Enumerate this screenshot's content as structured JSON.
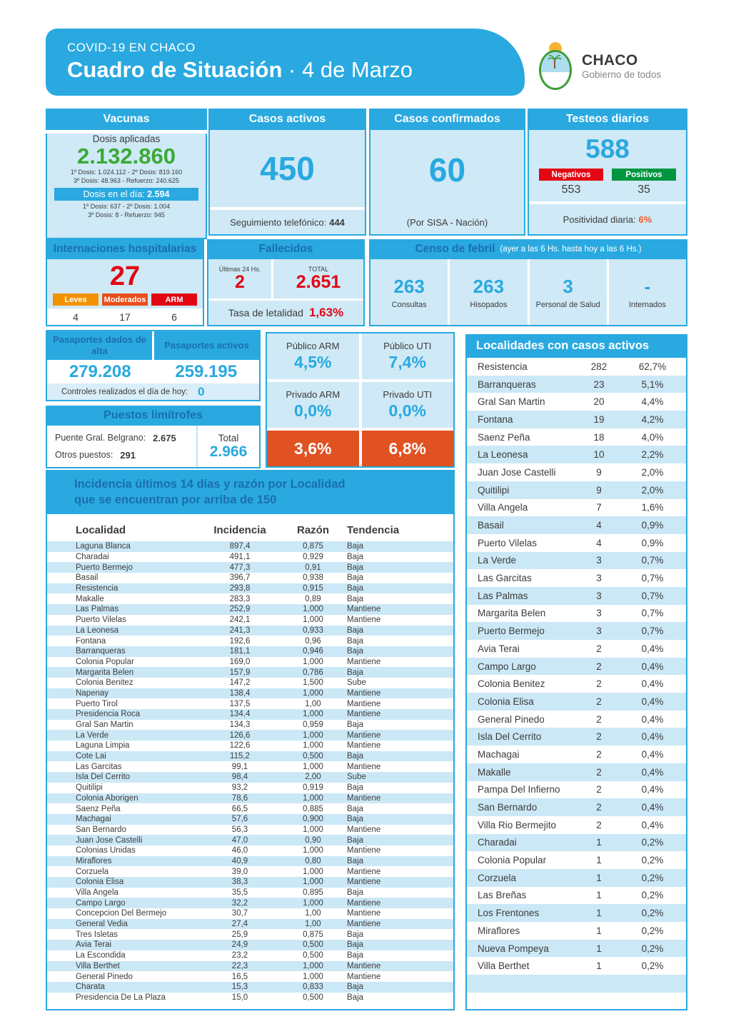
{
  "header": {
    "supertitle": "COVID-19 EN CHACO",
    "title": "Cuadro de Situación",
    "date": " · 4 de Marzo",
    "logo_name": "CHACO",
    "logo_tagline": "Gobierno de todos"
  },
  "vacunas": {
    "title": "Vacunas",
    "dosis_aplicadas_label": "Dosis aplicadas",
    "dosis_aplicadas": "2.132.860",
    "detalle_1": "1º Dosis: 1.024.112  -  2º Dosis:  819.160",
    "detalle_2": "3º Dosis: 48.963  -  Refuerzo: 240.625",
    "dosis_dia_label": "Dosis en el día: ",
    "dosis_dia": "2.594",
    "detalle_dia_1": "1º Dosis:  637  -  2º Dosis:  1.004",
    "detalle_dia_2": "3º Dosis: 8  -  Refuerzo:  945"
  },
  "casos_activos": {
    "title": "Casos activos",
    "value": "450",
    "footer_label": "Seguimiento telefónico:",
    "footer_value": "444"
  },
  "casos_confirmados": {
    "title": "Casos confirmados",
    "value": "60",
    "note": "(Por SISA - Nación)"
  },
  "testeos": {
    "title": "Testeos diarios",
    "value": "588",
    "negativos_label": "Negativos",
    "negativos": "553",
    "positivos_label": "Positivos",
    "positivos": "35",
    "positividad_label": "Positividad diaria:",
    "positividad": "6%"
  },
  "internaciones": {
    "title": "Internaciones hospitalarias",
    "value": "27",
    "categories": [
      {
        "label": "Leves",
        "value": "4",
        "color": "#F39200"
      },
      {
        "label": "Moderados",
        "value": "17",
        "color": "#E94E1B"
      },
      {
        "label": "ARM",
        "value": "6",
        "color": "#E30613"
      }
    ]
  },
  "fallecidos": {
    "title": "Fallecidos",
    "ultimas_label": "Últimas 24 Hs.",
    "ultimas": "2",
    "total_label": "TOTAL",
    "total": "2.651",
    "letalidad_label": "Tasa de letalidad",
    "letalidad": "1,63%"
  },
  "censo": {
    "title": "Censo de febril",
    "subtitle": "(ayer a las 6 Hs. hasta hoy a las 6 Hs.)",
    "items": [
      {
        "value": "263",
        "label": "Consultas"
      },
      {
        "value": "263",
        "label": "Hisopados"
      },
      {
        "value": "3",
        "label": "Personal de Salud"
      },
      {
        "value": "-",
        "label": "Internados"
      }
    ]
  },
  "pasaportes": {
    "alta_title": "Pasaportes dados de alta",
    "alta_value": "279.208",
    "activos_title": "Pasaportes activos",
    "activos_value": "259.195",
    "controles_label": "Controles realizados el día de hoy:",
    "controles_value": "0"
  },
  "puestos": {
    "title": "Puestos limítrofes",
    "rows": [
      {
        "label": "Puente Gral. Belgrano:",
        "value": "2.675"
      },
      {
        "label": "Otros puestos:",
        "value": "291"
      }
    ],
    "total_label": "Total",
    "total_value": "2.966"
  },
  "ocupacion": {
    "cells": [
      {
        "label": "Público ARM",
        "value": "4,5%"
      },
      {
        "label": "Público UTI",
        "value": "7,4%"
      },
      {
        "label": "Privado ARM",
        "value": "0,0%"
      },
      {
        "label": "Privado UTI",
        "value": "0,0%"
      }
    ],
    "totales": [
      "3,6%",
      "6,8%"
    ]
  },
  "localidades": {
    "title": "Localidades con casos activos",
    "empty_rows": 2,
    "rows": [
      [
        "Resistencia",
        "282",
        "62,7%"
      ],
      [
        "Barranqueras",
        "23",
        "5,1%"
      ],
      [
        "Gral San Martin",
        "20",
        "4,4%"
      ],
      [
        "Fontana",
        "19",
        "4,2%"
      ],
      [
        "Saenz Peña",
        "18",
        "4,0%"
      ],
      [
        "La Leonesa",
        "10",
        "2,2%"
      ],
      [
        "Juan Jose Castelli",
        "9",
        "2,0%"
      ],
      [
        "Quitilipi",
        "9",
        "2,0%"
      ],
      [
        "Villa Angela",
        "7",
        "1,6%"
      ],
      [
        "Basail",
        "4",
        "0,9%"
      ],
      [
        "Puerto Vilelas",
        "4",
        "0,9%"
      ],
      [
        "La Verde",
        "3",
        "0,7%"
      ],
      [
        "Las Garcitas",
        "3",
        "0,7%"
      ],
      [
        "Las Palmas",
        "3",
        "0,7%"
      ],
      [
        "Margarita Belen",
        "3",
        "0,7%"
      ],
      [
        "Puerto Bermejo",
        "3",
        "0,7%"
      ],
      [
        "Avia Terai",
        "2",
        "0,4%"
      ],
      [
        "Campo Largo",
        "2",
        "0,4%"
      ],
      [
        "Colonia Benitez",
        "2",
        "0,4%"
      ],
      [
        "Colonia Elisa",
        "2",
        "0,4%"
      ],
      [
        "General Pinedo",
        "2",
        "0,4%"
      ],
      [
        "Isla Del Cerrito",
        "2",
        "0,4%"
      ],
      [
        "Machagai",
        "2",
        "0,4%"
      ],
      [
        "Makalle",
        "2",
        "0,4%"
      ],
      [
        "Pampa Del Infierno",
        "2",
        "0,4%"
      ],
      [
        "San Bernardo",
        "2",
        "0,4%"
      ],
      [
        "Villa Rio Bermejito",
        "2",
        "0,4%"
      ],
      [
        "Charadai",
        "1",
        "0,2%"
      ],
      [
        "Colonia Popular",
        "1",
        "0,2%"
      ],
      [
        "Corzuela",
        "1",
        "0,2%"
      ],
      [
        "Las Breñas",
        "1",
        "0,2%"
      ],
      [
        "Los Frentones",
        "1",
        "0,2%"
      ],
      [
        "Miraflores",
        "1",
        "0,2%"
      ],
      [
        "Nueva Pompeya",
        "1",
        "0,2%"
      ],
      [
        "Villa Berthet",
        "1",
        "0,2%"
      ]
    ]
  },
  "incidencia": {
    "title_line1": "Incidencia últimos 14 días y razón por Localidad",
    "title_line2": "que se encuentran por arriba de 150",
    "columns": [
      "Localidad",
      "Incidencia",
      "Razón",
      "Tendencia"
    ],
    "rows": [
      [
        "Laguna Blanca",
        "897,4",
        "0,875",
        "Baja"
      ],
      [
        "Charadai",
        "491,1",
        "0,929",
        "Baja"
      ],
      [
        "Puerto Bermejo",
        "477,3",
        "0,91",
        "Baja"
      ],
      [
        "Basail",
        "396,7",
        "0,938",
        "Baja"
      ],
      [
        "Resistencia",
        "293,8",
        "0,915",
        "Baja"
      ],
      [
        "Makalle",
        "283,3",
        "0,89",
        "Baja"
      ],
      [
        "Las Palmas",
        "252,9",
        "1,000",
        "Mantiene"
      ],
      [
        "Puerto Vilelas",
        "242,1",
        "1,000",
        "Mantiene"
      ],
      [
        "La Leonesa",
        "241,3",
        "0,933",
        "Baja"
      ],
      [
        "Fontana",
        "192,6",
        "0,96",
        "Baja"
      ],
      [
        "Barranqueras",
        "181,1",
        "0,946",
        "Baja"
      ],
      [
        "Colonia Popular",
        "169,0",
        "1,000",
        "Mantiene"
      ],
      [
        "Margarita Belen",
        "157,9",
        "0,786",
        "Baja"
      ],
      [
        "Colonia Benitez",
        "147,2",
        "1,500",
        "Sube"
      ],
      [
        "Napenay",
        "138,4",
        "1,000",
        "Mantiene"
      ],
      [
        "Puerto Tirol",
        "137,5",
        "1,00",
        "Mantiene"
      ],
      [
        "Presidencia Roca",
        "134,4",
        "1,000",
        "Mantiene"
      ],
      [
        "Gral San Martin",
        "134,3",
        "0,959",
        "Baja"
      ],
      [
        "La Verde",
        "126,6",
        "1,000",
        "Mantiene"
      ],
      [
        "Laguna Limpia",
        "122,6",
        "1,000",
        "Mantiene"
      ],
      [
        "Cote Lai",
        "115,2",
        "0,500",
        "Baja"
      ],
      [
        "Las Garcitas",
        "99,1",
        "1,000",
        "Mantiene"
      ],
      [
        "Isla Del Cerrito",
        "98,4",
        "2,00",
        "Sube"
      ],
      [
        "Quitilipi",
        "93,2",
        "0,919",
        "Baja"
      ],
      [
        "Colonia Aborigen",
        "78,6",
        "1,000",
        "Mantiene"
      ],
      [
        "Saenz Peña",
        "66,5",
        "0,885",
        "Baja"
      ],
      [
        "Machagai",
        "57,6",
        "0,900",
        "Baja"
      ],
      [
        "San Bernardo",
        "56,3",
        "1,000",
        "Mantiene"
      ],
      [
        "Juan Jose Castelli",
        "47,0",
        "0,90",
        "Baja"
      ],
      [
        "Colonias Unidas",
        "46,0",
        "1,000",
        "Mantiene"
      ],
      [
        "Miraflores",
        "40,9",
        "0,80",
        "Baja"
      ],
      [
        "Corzuela",
        "39,0",
        "1,000",
        "Mantiene"
      ],
      [
        "Colonia Elisa",
        "38,3",
        "1,000",
        "Mantiene"
      ],
      [
        "Villa Angela",
        "35,5",
        "0,895",
        "Baja"
      ],
      [
        "Campo Largo",
        "32,2",
        "1,000",
        "Mantiene"
      ],
      [
        "Concepcion Del Bermejo",
        "30,7",
        "1,00",
        "Mantiene"
      ],
      [
        "General Vedia",
        "27,4",
        "1,00",
        "Mantiene"
      ],
      [
        "Tres Isletas",
        "25,9",
        "0,875",
        "Baja"
      ],
      [
        "Avia Terai",
        "24,9",
        "0,500",
        "Baja"
      ],
      [
        "La Escondida",
        "23,2",
        "0,500",
        "Baja"
      ],
      [
        "Villa Berthet",
        "22,3",
        "1,000",
        "Mantiene"
      ],
      [
        "General Pinedo",
        "16,5",
        "1,000",
        "Mantiene"
      ],
      [
        "Charata",
        "15,3",
        "0,833",
        "Baja"
      ],
      [
        "Presidencia De La Plaza",
        "15,0",
        "0,500",
        "Baja"
      ]
    ]
  },
  "colors": {
    "primary_blue": "#29A9E0",
    "dark_blue": "#1A6EB0",
    "light_blue": "#CFE9F6",
    "stripe_blue": "#CBE8F7",
    "green": "#3AAA35",
    "badge_green": "#009640",
    "red": "#E30613",
    "orange": "#F39200",
    "dark_orange": "#E94E1B",
    "vermillion": "#E05222",
    "accent_orange_text": "#F15A24",
    "text_dark": "#3C3C3B"
  }
}
